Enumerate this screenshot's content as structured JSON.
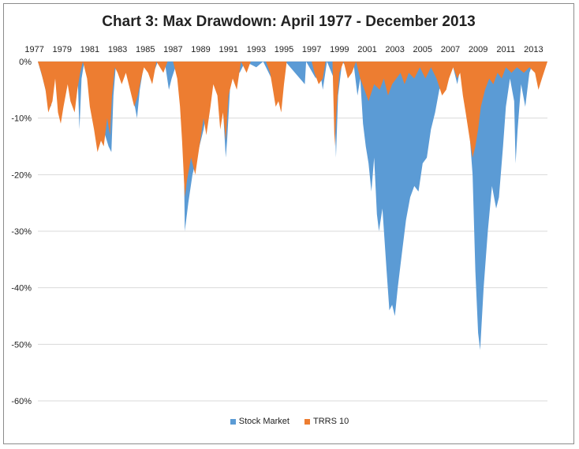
{
  "chart_data": {
    "type": "area",
    "title": "Chart 3: Max Drawdown: April 1977 - December 2013",
    "xlabel": "",
    "ylabel": "",
    "x_ticks": [
      "1977",
      "1979",
      "1981",
      "1983",
      "1985",
      "1987",
      "1989",
      "1991",
      "1993",
      "1995",
      "1997",
      "1999",
      "2001",
      "2003",
      "2005",
      "2007",
      "2009",
      "2011",
      "2013"
    ],
    "y_ticks": [
      "0%",
      "-10%",
      "-20%",
      "-30%",
      "-40%",
      "-50%",
      "-60%"
    ],
    "ylim": [
      -60,
      0
    ],
    "xlim": [
      1977.25,
      2014.0
    ],
    "legend_position": "bottom",
    "series": [
      {
        "name": "Stock Market",
        "color": "#5b9bd5",
        "points": [
          [
            1977.25,
            0
          ],
          [
            1977.6,
            -3
          ],
          [
            1977.9,
            -6
          ],
          [
            1978.2,
            -8
          ],
          [
            1978.4,
            -4
          ],
          [
            1978.6,
            -1
          ],
          [
            1978.9,
            -7
          ],
          [
            1979.1,
            -3
          ],
          [
            1979.5,
            -1
          ],
          [
            1979.8,
            -5
          ],
          [
            1980.1,
            -1
          ],
          [
            1980.25,
            -12
          ],
          [
            1980.4,
            -3
          ],
          [
            1980.6,
            0
          ],
          [
            1980.9,
            -1
          ],
          [
            1981.2,
            -3
          ],
          [
            1981.5,
            -7
          ],
          [
            1981.8,
            -11
          ],
          [
            1982.1,
            -13
          ],
          [
            1982.35,
            -15
          ],
          [
            1982.55,
            -16
          ],
          [
            1982.7,
            -6
          ],
          [
            1982.9,
            0
          ],
          [
            1983.5,
            0
          ],
          [
            1983.8,
            -3
          ],
          [
            1984.1,
            -6
          ],
          [
            1984.4,
            -10
          ],
          [
            1984.6,
            -5
          ],
          [
            1984.8,
            -2
          ],
          [
            1985.0,
            0
          ],
          [
            1985.6,
            -2
          ],
          [
            1985.9,
            0
          ],
          [
            1986.4,
            0
          ],
          [
            1986.7,
            -5
          ],
          [
            1986.9,
            -3
          ],
          [
            1987.3,
            0
          ],
          [
            1987.7,
            -3
          ],
          [
            1987.85,
            -30
          ],
          [
            1988.1,
            -25
          ],
          [
            1988.4,
            -20
          ],
          [
            1988.8,
            -16
          ],
          [
            1989.2,
            -12
          ],
          [
            1989.6,
            -6
          ],
          [
            1989.9,
            -3
          ],
          [
            1990.3,
            0
          ],
          [
            1990.5,
            -4
          ],
          [
            1990.8,
            -17
          ],
          [
            1990.9,
            -14
          ],
          [
            1991.1,
            -5
          ],
          [
            1991.3,
            0
          ],
          [
            1991.8,
            -2
          ],
          [
            1992.2,
            0
          ],
          [
            1993.0,
            -1
          ],
          [
            1993.5,
            0
          ],
          [
            1994.1,
            -3
          ],
          [
            1994.4,
            -7
          ],
          [
            1994.8,
            -5
          ],
          [
            1995.1,
            0
          ],
          [
            1996.5,
            -4
          ],
          [
            1996.6,
            0
          ],
          [
            1997.3,
            -3
          ],
          [
            1997.5,
            0
          ],
          [
            1997.8,
            -5
          ],
          [
            1998.1,
            0
          ],
          [
            1998.6,
            -3
          ],
          [
            1998.75,
            -17
          ],
          [
            1998.9,
            -6
          ],
          [
            1999.2,
            0
          ],
          [
            1999.8,
            -2
          ],
          [
            2000.0,
            0
          ],
          [
            2000.3,
            -6
          ],
          [
            2000.5,
            -3
          ],
          [
            2000.7,
            -11
          ],
          [
            2000.9,
            -15
          ],
          [
            2001.1,
            -18
          ],
          [
            2001.3,
            -23
          ],
          [
            2001.5,
            -17
          ],
          [
            2001.7,
            -27
          ],
          [
            2001.85,
            -30
          ],
          [
            2002.1,
            -26
          ],
          [
            2002.4,
            -37
          ],
          [
            2002.6,
            -44
          ],
          [
            2002.8,
            -43
          ],
          [
            2003.0,
            -45
          ],
          [
            2003.2,
            -40
          ],
          [
            2003.5,
            -34
          ],
          [
            2003.8,
            -28
          ],
          [
            2004.1,
            -24
          ],
          [
            2004.4,
            -22
          ],
          [
            2004.7,
            -23
          ],
          [
            2005.0,
            -18
          ],
          [
            2005.3,
            -17
          ],
          [
            2005.6,
            -12
          ],
          [
            2005.9,
            -9
          ],
          [
            2006.2,
            -5
          ],
          [
            2006.5,
            -3
          ],
          [
            2006.8,
            -1
          ],
          [
            2007.1,
            0
          ],
          [
            2007.5,
            -4
          ],
          [
            2007.8,
            0
          ],
          [
            2008.0,
            -6
          ],
          [
            2008.3,
            -10
          ],
          [
            2008.6,
            -20
          ],
          [
            2008.8,
            -37
          ],
          [
            2009.0,
            -48
          ],
          [
            2009.15,
            -51
          ],
          [
            2009.4,
            -40
          ],
          [
            2009.7,
            -30
          ],
          [
            2010.0,
            -22
          ],
          [
            2010.3,
            -26
          ],
          [
            2010.5,
            -24
          ],
          [
            2010.8,
            -15
          ],
          [
            2011.0,
            -8
          ],
          [
            2011.3,
            -3
          ],
          [
            2011.6,
            -7
          ],
          [
            2011.7,
            -18
          ],
          [
            2011.85,
            -12
          ],
          [
            2012.1,
            -4
          ],
          [
            2012.4,
            -8
          ],
          [
            2012.7,
            -2
          ],
          [
            2013.0,
            0
          ],
          [
            2013.4,
            -2
          ],
          [
            2013.6,
            0
          ],
          [
            2014.0,
            0
          ]
        ]
      },
      {
        "name": "TRRS 10",
        "color": "#ed7d31",
        "points": [
          [
            1977.25,
            0
          ],
          [
            1977.5,
            -2
          ],
          [
            1977.8,
            -5
          ],
          [
            1978.0,
            -9
          ],
          [
            1978.3,
            -7
          ],
          [
            1978.5,
            -3
          ],
          [
            1978.7,
            -9
          ],
          [
            1978.9,
            -11
          ],
          [
            1979.1,
            -8
          ],
          [
            1979.4,
            -4
          ],
          [
            1979.6,
            -7
          ],
          [
            1979.9,
            -9
          ],
          [
            1980.1,
            -5
          ],
          [
            1980.3,
            -2
          ],
          [
            1980.5,
            0
          ],
          [
            1980.8,
            -3
          ],
          [
            1981.0,
            -8
          ],
          [
            1981.3,
            -12
          ],
          [
            1981.55,
            -16
          ],
          [
            1981.8,
            -14
          ],
          [
            1982.0,
            -15
          ],
          [
            1982.25,
            -10
          ],
          [
            1982.45,
            -13
          ],
          [
            1982.6,
            -6
          ],
          [
            1982.8,
            -1
          ],
          [
            1983.0,
            -2
          ],
          [
            1983.3,
            -4
          ],
          [
            1983.6,
            -2
          ],
          [
            1983.9,
            -5
          ],
          [
            1984.2,
            -8
          ],
          [
            1984.45,
            -6
          ],
          [
            1984.7,
            -3
          ],
          [
            1984.9,
            -1
          ],
          [
            1985.2,
            -2
          ],
          [
            1985.5,
            -4
          ],
          [
            1985.8,
            0
          ],
          [
            1986.3,
            -2
          ],
          [
            1986.6,
            0
          ],
          [
            1987.0,
            0
          ],
          [
            1987.3,
            -3
          ],
          [
            1987.5,
            -8
          ],
          [
            1987.65,
            -14
          ],
          [
            1987.85,
            -24
          ],
          [
            1988.0,
            -21
          ],
          [
            1988.3,
            -17
          ],
          [
            1988.6,
            -20
          ],
          [
            1988.9,
            -15
          ],
          [
            1989.2,
            -10
          ],
          [
            1989.4,
            -13
          ],
          [
            1989.7,
            -8
          ],
          [
            1989.9,
            -4
          ],
          [
            1990.2,
            -6
          ],
          [
            1990.4,
            -12
          ],
          [
            1990.6,
            -9
          ],
          [
            1990.8,
            -14
          ],
          [
            1991.0,
            -6
          ],
          [
            1991.3,
            -3
          ],
          [
            1991.6,
            -5
          ],
          [
            1991.9,
            0
          ],
          [
            1992.3,
            -2
          ],
          [
            1992.6,
            0
          ],
          [
            1993.7,
            0
          ],
          [
            1994.0,
            -2
          ],
          [
            1994.2,
            -5
          ],
          [
            1994.4,
            -8
          ],
          [
            1994.6,
            -7
          ],
          [
            1994.8,
            -9
          ],
          [
            1995.0,
            -4
          ],
          [
            1995.2,
            0
          ],
          [
            1997.0,
            0
          ],
          [
            1997.2,
            -2
          ],
          [
            1997.5,
            -4
          ],
          [
            1997.8,
            -3
          ],
          [
            1998.0,
            0
          ],
          [
            1998.5,
            0
          ],
          [
            1998.65,
            -15
          ],
          [
            1998.8,
            -8
          ],
          [
            1999.0,
            -2
          ],
          [
            1999.3,
            0
          ],
          [
            1999.6,
            -3
          ],
          [
            1999.9,
            -2
          ],
          [
            2000.2,
            0
          ],
          [
            2000.5,
            -3
          ],
          [
            2000.8,
            -5
          ],
          [
            2001.1,
            -7
          ],
          [
            2001.5,
            -4
          ],
          [
            2001.9,
            -5
          ],
          [
            2002.2,
            -3
          ],
          [
            2002.5,
            -6
          ],
          [
            2002.8,
            -4
          ],
          [
            2003.1,
            -3
          ],
          [
            2003.4,
            -2
          ],
          [
            2003.7,
            -4
          ],
          [
            2004.0,
            -2
          ],
          [
            2004.4,
            -3
          ],
          [
            2004.8,
            -1
          ],
          [
            2005.2,
            -3
          ],
          [
            2005.6,
            -1
          ],
          [
            2006.0,
            -3
          ],
          [
            2006.4,
            -6
          ],
          [
            2006.7,
            -5
          ],
          [
            2006.9,
            -3
          ],
          [
            2007.2,
            -1
          ],
          [
            2007.5,
            -3
          ],
          [
            2007.7,
            -2
          ],
          [
            2007.9,
            -6
          ],
          [
            2008.1,
            -9
          ],
          [
            2008.35,
            -13
          ],
          [
            2008.6,
            -17
          ],
          [
            2008.8,
            -15
          ],
          [
            2009.0,
            -12
          ],
          [
            2009.2,
            -8
          ],
          [
            2009.5,
            -5
          ],
          [
            2009.8,
            -3
          ],
          [
            2010.1,
            -4
          ],
          [
            2010.4,
            -2
          ],
          [
            2010.7,
            -3
          ],
          [
            2011.0,
            -1
          ],
          [
            2011.4,
            -2
          ],
          [
            2011.8,
            -1
          ],
          [
            2012.3,
            -2
          ],
          [
            2012.7,
            -1
          ],
          [
            2013.1,
            -2
          ],
          [
            2013.35,
            -5
          ],
          [
            2013.6,
            -3
          ],
          [
            2014.0,
            0
          ]
        ]
      }
    ]
  }
}
